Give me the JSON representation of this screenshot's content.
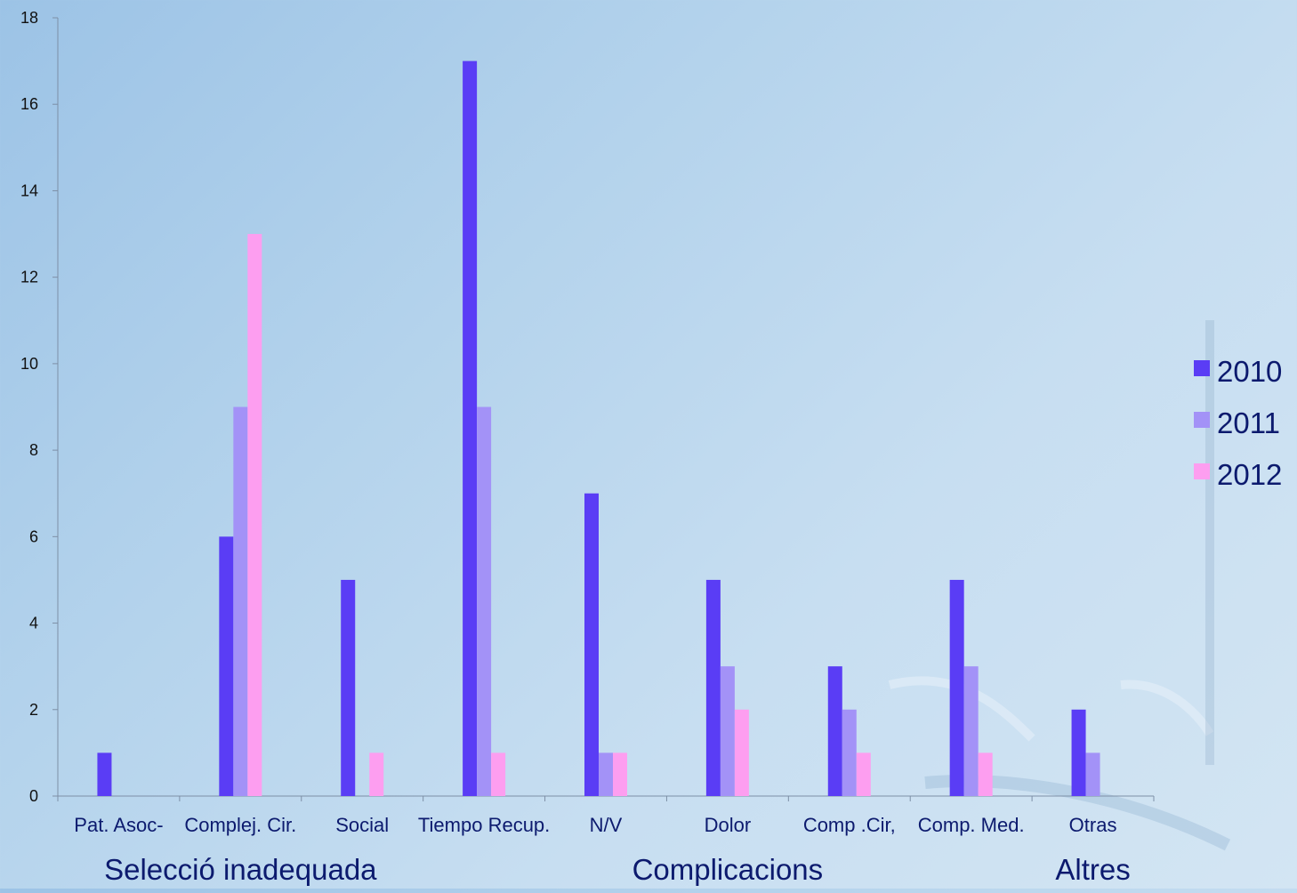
{
  "chart_data": {
    "type": "bar",
    "categories": [
      "Pat. Asoc-",
      "Complej. Cir.",
      "Social",
      "Tiempo Recup.",
      "N/V",
      "Dolor",
      "Comp .Cir,",
      "Comp. Med.",
      "Otras"
    ],
    "groups": [
      {
        "label": "Selecció inadequada",
        "categories": [
          "Pat. Asoc-",
          "Complej. Cir.",
          "Social"
        ]
      },
      {
        "label": "Complicacions",
        "categories": [
          "Tiempo Recup.",
          "N/V",
          "Dolor",
          "Comp .Cir,",
          "Comp. Med."
        ]
      },
      {
        "label": "Altres",
        "categories": [
          "Otras"
        ]
      }
    ],
    "series": [
      {
        "name": "2010",
        "color": "#5a3df5",
        "values": [
          1,
          6,
          5,
          17,
          7,
          5,
          3,
          5,
          2
        ]
      },
      {
        "name": "2011",
        "color": "#a392f7",
        "values": [
          0,
          9,
          0,
          9,
          1,
          3,
          2,
          3,
          1
        ]
      },
      {
        "name": "2012",
        "color": "#fd9ef0",
        "values": [
          0,
          13,
          1,
          1,
          1,
          2,
          1,
          1,
          0
        ]
      }
    ],
    "ylim": [
      0,
      18
    ],
    "yticks": [
      0,
      2,
      4,
      6,
      8,
      10,
      12,
      14,
      16,
      18
    ],
    "grid": false,
    "legend": "right"
  }
}
